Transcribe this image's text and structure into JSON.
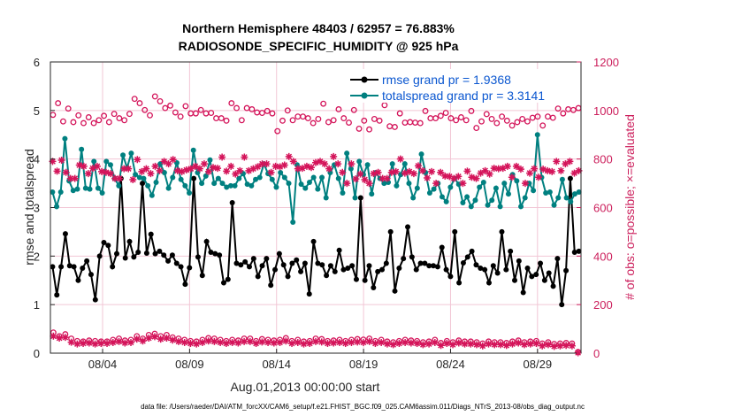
{
  "chart_data": {
    "type": "line",
    "title_line1": "Northern Hemisphere 48403 / 62957 = 76.883%",
    "title_line2": "RADIOSONDE_SPECIFIC_HUMIDITY @ 925 hPa",
    "xlabel": "Aug.01,2013 00:00:00 start",
    "ylabel": "rmse and totalspread",
    "y2label": "# of obs: o=possible; ×=evaluated",
    "xlim": [
      0,
      61
    ],
    "ylim": [
      0,
      6
    ],
    "y2lim": [
      0,
      1200
    ],
    "x_ticks": [
      {
        "x": 6,
        "label": "08/04"
      },
      {
        "x": 16,
        "label": "08/09"
      },
      {
        "x": 26,
        "label": "08/14"
      },
      {
        "x": 36,
        "label": "08/19"
      },
      {
        "x": 46,
        "label": "08/24"
      },
      {
        "x": 56,
        "label": "08/29"
      }
    ],
    "y_ticks": [
      {
        "v": 0,
        "label": "0"
      },
      {
        "v": 1,
        "label": "1"
      },
      {
        "v": 2,
        "label": "2"
      },
      {
        "v": 3,
        "label": "3"
      },
      {
        "v": 4,
        "label": "4"
      },
      {
        "v": 5,
        "label": "5"
      },
      {
        "v": 6,
        "label": "6"
      }
    ],
    "y2_ticks": [
      {
        "v": 0,
        "label": "0"
      },
      {
        "v": 200,
        "label": "200"
      },
      {
        "v": 400,
        "label": "400"
      },
      {
        "v": 600,
        "label": "600"
      },
      {
        "v": 800,
        "label": "800"
      },
      {
        "v": 1000,
        "label": "1000"
      },
      {
        "v": 1200,
        "label": "1200"
      }
    ],
    "series": [
      {
        "name": "rmse grand pr = 1.9368",
        "color": "#000000",
        "axis": "left",
        "values": [
          1.78,
          1.2,
          1.78,
          2.46,
          1.8,
          1.78,
          1.5,
          1.75,
          1.9,
          1.62,
          1.1,
          2.0,
          2.28,
          2.22,
          1.78,
          2.05,
          3.6,
          1.96,
          2.3,
          1.98,
          2.08,
          3.5,
          2.06,
          2.45,
          2.05,
          2.1,
          2.02,
          1.9,
          2.02,
          1.85,
          1.78,
          1.42,
          1.76,
          3.6,
          1.98,
          1.6,
          2.3,
          2.08,
          2.05,
          2.02,
          1.45,
          1.52,
          3.1,
          1.85,
          1.82,
          1.88,
          1.78,
          1.95,
          1.58,
          1.8,
          1.95,
          1.4,
          1.72,
          2.05,
          1.82,
          1.58,
          1.85,
          1.92,
          1.68,
          1.85,
          1.22,
          2.3,
          1.85,
          1.82,
          1.6,
          1.8,
          1.68,
          2.12,
          1.72,
          1.75,
          1.8,
          1.52,
          3.2,
          1.5,
          1.8,
          1.35,
          1.68,
          1.72,
          1.85,
          2.5,
          1.28,
          1.75,
          1.95,
          2.6,
          1.98,
          1.72,
          1.85,
          1.85,
          1.8,
          1.8,
          1.78,
          2.18,
          1.72,
          1.58,
          2.5,
          1.45,
          1.86,
          1.98,
          2.1,
          1.82,
          1.75,
          1.72,
          1.45,
          1.8,
          1.65,
          2.5,
          1.72,
          2.1,
          1.5,
          1.9,
          1.25,
          1.75,
          1.58,
          1.62,
          1.85,
          1.5,
          1.65,
          1.38,
          1.95,
          1.0,
          1.7,
          3.6,
          2.08,
          2.1
        ]
      },
      {
        "name": "totalspread grand pr = 3.3141",
        "color": "#008080",
        "axis": "left",
        "values": [
          3.32,
          3.02,
          3.32,
          4.42,
          3.55,
          3.35,
          3.38,
          4.2,
          3.4,
          3.38,
          3.95,
          3.4,
          3.3,
          3.95,
          3.88,
          3.6,
          3.45,
          4.08,
          3.82,
          4.12,
          3.68,
          3.62,
          3.6,
          3.45,
          3.25,
          3.52,
          3.9,
          3.72,
          3.4,
          3.62,
          3.92,
          3.58,
          3.45,
          3.3,
          4.18,
          3.72,
          3.5,
          3.65,
          3.98,
          3.5,
          3.6,
          3.5,
          3.42,
          3.45,
          3.45,
          3.6,
          3.7,
          3.48,
          3.45,
          3.58,
          3.62,
          3.9,
          3.7,
          3.58,
          3.42,
          3.72,
          3.62,
          3.5,
          2.7,
          3.88,
          3.48,
          3.4,
          3.52,
          3.62,
          3.38,
          3.62,
          3.2,
          3.72,
          3.88,
          3.6,
          3.3,
          4.12,
          3.8,
          3.2,
          3.95,
          3.68,
          3.88,
          3.28,
          3.72,
          3.6,
          3.5,
          3.52,
          3.9,
          3.45,
          3.68,
          3.9,
          3.5,
          3.2,
          3.4,
          4.1,
          3.72,
          3.3,
          3.38,
          3.5,
          3.22,
          3.12,
          3.42,
          3.6,
          3.48,
          3.1,
          3.22,
          3.02,
          3.15,
          3.42,
          3.52,
          3.05,
          3.15,
          3.4,
          3.02,
          3.5,
          3.28,
          3.68,
          3.55,
          3.02,
          3.2,
          3.5,
          3.35,
          4.5,
          3.62,
          3.3,
          3.32,
          3.05,
          3.2,
          3.58,
          3.2,
          3.12,
          3.28,
          3.32
        ]
      },
      {
        "name": "obs possible",
        "color": "#d4145a",
        "axis": "right",
        "marker": "o",
        "values": [
          982,
          1030,
          955,
          1008,
          952,
          980,
          948,
          972,
          948,
          960,
          978,
          952,
          986,
          968,
          960,
          986,
          1048,
          1030,
          1002,
          980,
          1058,
          1038,
          1010,
          1020,
          992,
          975,
          1018,
          988,
          988,
          1002,
          988,
          990,
          968,
          968,
          958,
          1030,
          1010,
          960,
          1010,
          1005,
          992,
          990,
          998,
          988,
          915,
          958,
          1000,
          960,
          975,
          975,
          968,
          948,
          965,
          1028,
          952,
          960,
          1005,
          968,
          950,
          1002,
          925,
          958,
          922,
          965,
          958,
          1022,
          935,
          932,
          988,
          950,
          952,
          950,
          948,
          998,
          968,
          968,
          978,
          990,
          968,
          960,
          972,
          960,
          998,
          928,
          955,
          985,
          965,
          948,
          975,
          958,
          938,
          952,
          965,
          955,
          970,
          975,
          938,
          975,
          970,
          1008,
          988,
          1005,
          1002,
          1010
        ]
      },
      {
        "name": "obs evaluated",
        "color": "#d4145a",
        "axis": "right",
        "marker": "*",
        "values": [
          790,
          750,
          795,
          745,
          720,
          720,
          775,
          770,
          740,
          762,
          770,
          748,
          745,
          740,
          720,
          720,
          760,
          760,
          715,
          798,
          748,
          760,
          740,
          770,
          752,
          790,
          780,
          798,
          752,
          748,
          755,
          760,
          770,
          760,
          780,
          748,
          765,
          762,
          808,
          750,
          770,
          738,
          752,
          808,
          752,
          760,
          768,
          780,
          780,
          745,
          770,
          768,
          775,
          810,
          790,
          760,
          762,
          770,
          765,
          785,
          790,
          780,
          760,
          810,
          780,
          745,
          700,
          780,
          718,
          738,
          715,
          700,
          740,
          745,
          720,
          720,
          745,
          748,
          800,
          742,
          748,
          740,
          772,
          752,
          722,
          748,
          700,
          745,
          730,
          728,
          720,
          728,
          700,
          750,
          725,
          720,
          742,
          752,
          738,
          762,
          760,
          762,
          770,
          725,
          770,
          758,
          700,
          742,
          760,
          725,
          758,
          752,
          748,
          790,
          752,
          780,
          790,
          742,
          752
        ]
      },
      {
        "name": "obs possible lower",
        "color": "#d4145a",
        "axis": "right",
        "marker": "o",
        "values": [
          85,
          70,
          78,
          60,
          50,
          48,
          52,
          50,
          48,
          48,
          55,
          60,
          52,
          55,
          70,
          60,
          75,
          80,
          70,
          75,
          65,
          60,
          55,
          50,
          48,
          55,
          62,
          60,
          55,
          50,
          55,
          52,
          60,
          60,
          50,
          58,
          55,
          52,
          55,
          62,
          50,
          55,
          48,
          50,
          60,
          58,
          50,
          52,
          55,
          50,
          55,
          58,
          56,
          60,
          50,
          55,
          48,
          45,
          50,
          55,
          52,
          50,
          45,
          48,
          55,
          42,
          50,
          45,
          52,
          48,
          48,
          45,
          40,
          48,
          45,
          45,
          42,
          48,
          52,
          45,
          48,
          50,
          40,
          45,
          38,
          40,
          42,
          40,
          5
        ]
      },
      {
        "name": "obs evaluated lower",
        "color": "#d4145a",
        "axis": "right",
        "marker": "*",
        "values": [
          70,
          62,
          65,
          45,
          38,
          40,
          42,
          38,
          40,
          40,
          44,
          48,
          42,
          44,
          58,
          50,
          62,
          68,
          58,
          62,
          54,
          48,
          44,
          40,
          38,
          44,
          50,
          48,
          44,
          40,
          44,
          42,
          48,
          48,
          40,
          46,
          44,
          42,
          44,
          50,
          40,
          44,
          38,
          40,
          48,
          46,
          40,
          42,
          44,
          40,
          44,
          46,
          44,
          48,
          40,
          44,
          38,
          35,
          40,
          44,
          42,
          40,
          35,
          38,
          44,
          32,
          40,
          35,
          42,
          38,
          38,
          35,
          30,
          38,
          35,
          35,
          32,
          38,
          42,
          35,
          38,
          40,
          30,
          35,
          28,
          30,
          32,
          30,
          2
        ]
      }
    ],
    "legend": [
      {
        "label": "rmse grand pr = 1.9368",
        "color": "#000000"
      },
      {
        "label": "totalspread grand pr = 3.3141",
        "color": "#008080"
      }
    ],
    "legend_placement": "top-right",
    "footnote": "data file: /Users/raeder/DAI/ATM_forcXX/CAM6_setup/f.e21.FHIST_BGC.f09_025.CAM6assim.011/Diags_NTrS_2013-08/obs_diag_output.nc",
    "grid": true
  }
}
